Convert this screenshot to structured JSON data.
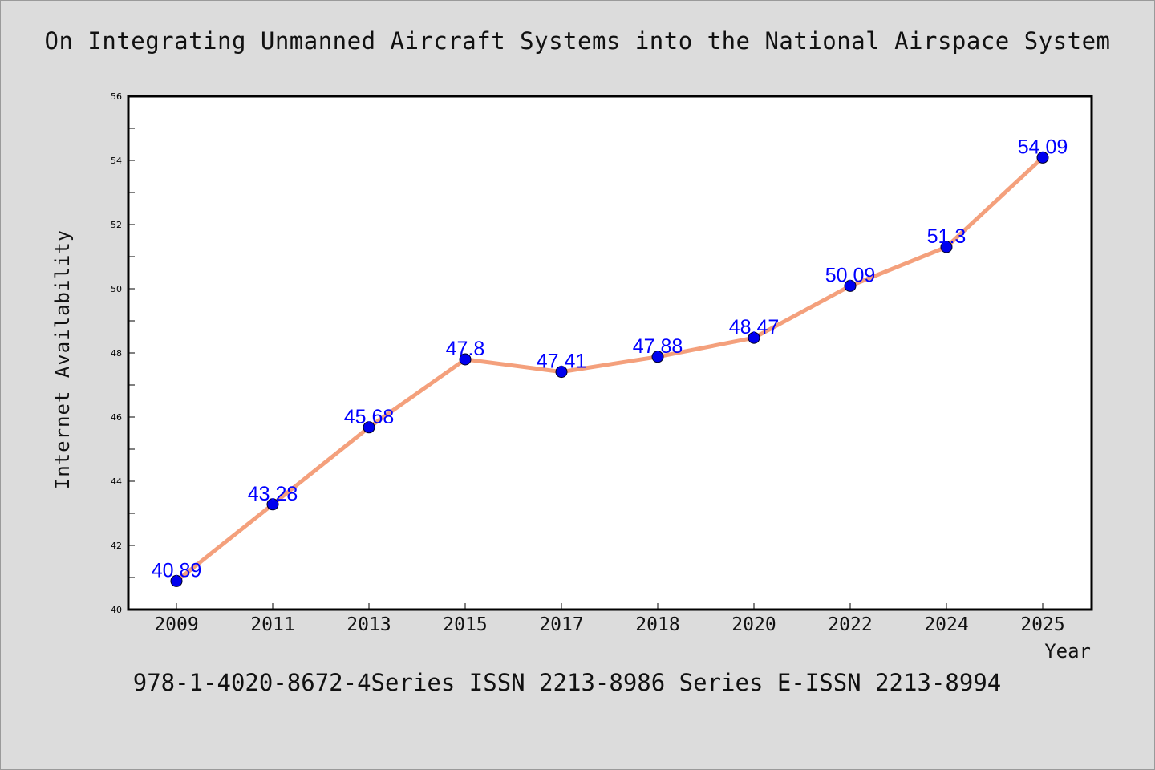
{
  "title": "On Integrating Unmanned Aircraft Systems into the National Airspace System",
  "footer": "978-1-4020-8672-4Series ISSN 2213-8986 Series E-ISSN 2213-8994",
  "colors": {
    "background": "#dcdcdc",
    "plot_background": "#ffffff",
    "line": "#f4a07c",
    "marker": "#0000ee",
    "data_label": "#0000ff"
  },
  "chart_data": {
    "type": "line",
    "categories": [
      "2009",
      "2011",
      "2013",
      "2015",
      "2017",
      "2018",
      "2020",
      "2022",
      "2024",
      "2025"
    ],
    "values": [
      40.89,
      43.28,
      45.68,
      47.8,
      47.41,
      47.88,
      48.47,
      50.09,
      51.3,
      54.09
    ],
    "data_labels": [
      "40.89",
      "43.28",
      "45.68",
      "47.8",
      "47.41",
      "47.88",
      "48.47",
      "50.09",
      "51.3",
      "54.09"
    ],
    "xlabel": "Year",
    "ylabel": "Internet Availability",
    "ylim": [
      40,
      56
    ],
    "yticks": [
      40,
      42,
      44,
      46,
      48,
      50,
      52,
      54,
      56
    ],
    "grid": false,
    "legend": "none"
  }
}
